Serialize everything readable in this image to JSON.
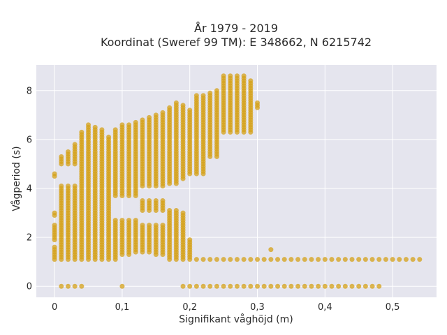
{
  "chart_data": {
    "type": "scatter",
    "title_lines": [
      "År 1979 - 2019",
      "Koordinat (Sweref 99 TM): E 348662, N 6215742"
    ],
    "xlabel": "Signifikant våghöjd (m)",
    "ylabel": "Vågperiod (s)",
    "xlim": [
      -0.027,
      0.565
    ],
    "ylim": [
      -0.45,
      9.05
    ],
    "xticks": [
      0,
      0.1,
      0.2,
      0.3,
      0.4,
      0.5
    ],
    "xtick_labels": [
      "0",
      "0,1",
      "0,2",
      "0,3",
      "0,4",
      "0,5"
    ],
    "yticks": [
      0,
      2,
      4,
      6,
      8
    ],
    "ytick_labels": [
      "0",
      "2",
      "4",
      "6",
      "8"
    ],
    "grid": true,
    "marker_color": "#D4A017",
    "plot_background": "#E5E5EE",
    "grid_color": "#FFFFFF",
    "x_step": 0.01,
    "y_step": 0.1,
    "regions": [
      {
        "x": [
          0.0,
          0.0
        ],
        "y": [
          1.1,
          1.6
        ]
      },
      {
        "x": [
          0.0,
          0.0
        ],
        "y": [
          1.9,
          2.5
        ]
      },
      {
        "x": [
          0.0,
          0.0
        ],
        "y": [
          2.9,
          3.0
        ]
      },
      {
        "x": [
          0.0,
          0.0
        ],
        "y": [
          4.5,
          4.6
        ]
      },
      {
        "x": [
          0.01,
          0.01
        ],
        "y": [
          1.1,
          5.3
        ]
      },
      {
        "x": [
          0.02,
          0.02
        ],
        "y": [
          1.1,
          5.5
        ]
      },
      {
        "x": [
          0.03,
          0.03
        ],
        "y": [
          1.1,
          5.8
        ]
      },
      {
        "x": [
          0.04,
          0.04
        ],
        "y": [
          1.1,
          6.3
        ]
      },
      {
        "x": [
          0.05,
          0.05
        ],
        "y": [
          1.1,
          6.6
        ]
      },
      {
        "x": [
          0.06,
          0.06
        ],
        "y": [
          1.1,
          6.5
        ]
      },
      {
        "x": [
          0.07,
          0.07
        ],
        "y": [
          1.1,
          6.4
        ]
      },
      {
        "x": [
          0.08,
          0.08
        ],
        "y": [
          1.1,
          6.1
        ]
      },
      {
        "x": [
          0.09,
          0.09
        ],
        "y": [
          1.1,
          6.4
        ]
      },
      {
        "x": [
          0.1,
          0.1
        ],
        "y": [
          1.3,
          6.6
        ]
      },
      {
        "x": [
          0.11,
          0.11
        ],
        "y": [
          1.3,
          6.6
        ]
      },
      {
        "x": [
          0.12,
          0.12
        ],
        "y": [
          1.4,
          6.7
        ]
      },
      {
        "x": [
          0.13,
          0.13
        ],
        "y": [
          1.4,
          6.8
        ]
      },
      {
        "x": [
          0.14,
          0.14
        ],
        "y": [
          1.4,
          6.9
        ]
      },
      {
        "x": [
          0.15,
          0.15
        ],
        "y": [
          1.3,
          7.0
        ]
      },
      {
        "x": [
          0.16,
          0.16
        ],
        "y": [
          1.3,
          7.1
        ]
      },
      {
        "x": [
          0.17,
          0.17
        ],
        "y": [
          1.1,
          7.3
        ]
      },
      {
        "x": [
          0.18,
          0.18
        ],
        "y": [
          1.1,
          7.5
        ]
      },
      {
        "x": [
          0.19,
          0.19
        ],
        "y": [
          1.1,
          7.4
        ]
      },
      {
        "x": [
          0.2,
          0.2
        ],
        "y": [
          1.1,
          7.2
        ]
      },
      {
        "x": [
          0.21,
          0.21
        ],
        "y": [
          1.1,
          7.8
        ]
      },
      {
        "x": [
          0.22,
          0.22
        ],
        "y": [
          1.1,
          7.8
        ]
      },
      {
        "x": [
          0.23,
          0.23
        ],
        "y": [
          1.1,
          7.9
        ]
      },
      {
        "x": [
          0.24,
          0.24
        ],
        "y": [
          1.1,
          8.0
        ]
      },
      {
        "x": [
          0.25,
          0.25
        ],
        "y": [
          1.1,
          8.6
        ]
      },
      {
        "x": [
          0.26,
          0.26
        ],
        "y": [
          1.1,
          8.6
        ]
      },
      {
        "x": [
          0.27,
          0.27
        ],
        "y": [
          1.1,
          8.6
        ]
      },
      {
        "x": [
          0.28,
          0.28
        ],
        "y": [
          1.1,
          8.6
        ]
      },
      {
        "x": [
          0.29,
          0.29
        ],
        "y": [
          1.1,
          8.4
        ]
      },
      {
        "x": [
          0.3,
          0.3
        ],
        "y": [
          1.1,
          7.5
        ]
      },
      {
        "x": [
          0.31,
          0.54
        ],
        "y": [
          1.1,
          1.1
        ]
      },
      {
        "x": [
          0.13,
          0.32
        ],
        "y": [
          1.5,
          1.5
        ]
      },
      {
        "x": [
          0.01,
          0.06
        ],
        "y": [
          0.0,
          0.0
        ]
      },
      {
        "x": [
          0.1,
          0.1
        ],
        "y": [
          0.0,
          0.0
        ]
      },
      {
        "x": [
          0.19,
          0.48
        ],
        "y": [
          0.0,
          0.0
        ]
      }
    ],
    "gaps": [
      {
        "x": [
          0.01,
          0.03
        ],
        "y": [
          4.2,
          4.9
        ]
      },
      {
        "x": [
          0.05,
          0.09
        ],
        "y": [
          0.0,
          1.0
        ]
      },
      {
        "x": [
          0.13,
          0.18
        ],
        "y": [
          3.6,
          4.0
        ]
      },
      {
        "x": [
          0.17,
          0.2
        ],
        "y": [
          3.2,
          4.1
        ]
      },
      {
        "x": [
          0.19,
          0.22
        ],
        "y": [
          3.1,
          4.3
        ]
      },
      {
        "x": [
          0.2,
          0.23
        ],
        "y": [
          2.0,
          4.5
        ]
      },
      {
        "x": [
          0.23,
          0.26
        ],
        "y": [
          2.0,
          5.2
        ]
      },
      {
        "x": [
          0.25,
          0.3
        ],
        "y": [
          2.0,
          6.2
        ]
      },
      {
        "x": [
          0.21,
          0.29
        ],
        "y": [
          1.2,
          1.9
        ]
      },
      {
        "x": [
          0.09,
          0.12
        ],
        "y": [
          2.8,
          3.6
        ]
      },
      {
        "x": [
          0.13,
          0.16
        ],
        "y": [
          2.6,
          3.0
        ]
      },
      {
        "x": [
          0.3,
          0.31
        ],
        "y": [
          1.2,
          7.2
        ]
      }
    ]
  }
}
